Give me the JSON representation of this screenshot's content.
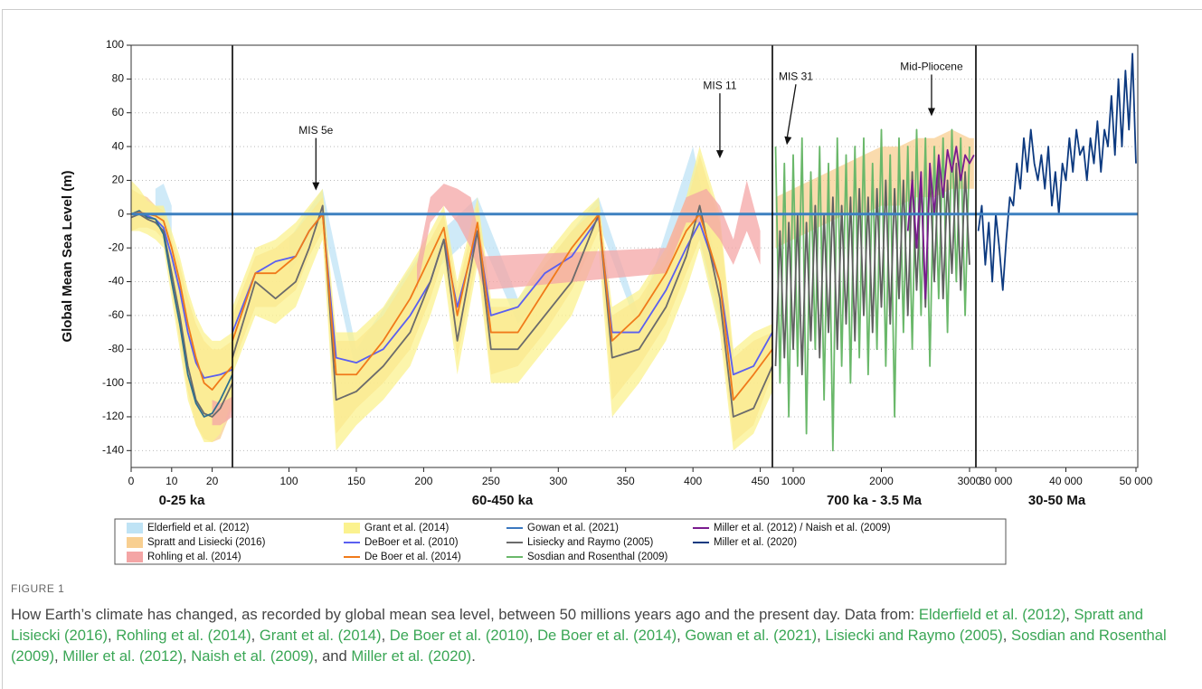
{
  "chart_data": [
    {
      "type": "line",
      "label": "0-25 ka",
      "ylabel": "Global Mean Sea Level (m)",
      "ylim": [
        -150,
        100
      ],
      "yticks": [
        -140,
        -120,
        -100,
        -80,
        -60,
        -40,
        -20,
        0,
        20,
        40,
        60,
        80,
        100
      ],
      "grid": true,
      "xlim": [
        0,
        25
      ],
      "xticks": [
        0,
        10,
        20
      ],
      "reference_line": {
        "value": 0,
        "color": "#3d80c0"
      },
      "x": [
        0,
        2,
        4,
        6,
        8,
        10,
        12,
        14,
        16,
        18,
        20,
        22,
        25
      ],
      "series": [
        {
          "color": "#bfe3f5",
          "x": [
            6,
            8,
            10
          ],
          "lower": [
            -5,
            -10,
            -20
          ],
          "upper": [
            15,
            18,
            5
          ]
        },
        {
          "color": "#f8cf91",
          "lower": [
            -10,
            -8,
            -8,
            -10,
            -15,
            -45,
            -75,
            -105,
            -125,
            -133,
            -135,
            -133,
            -115
          ],
          "upper": [
            15,
            12,
            10,
            5,
            2,
            -15,
            -30,
            -50,
            -65,
            -75,
            -80,
            -80,
            -75
          ]
        },
        {
          "color": "#fbf28f",
          "lower": [
            -10,
            -10,
            -12,
            -15,
            -20,
            -50,
            -80,
            -110,
            -125,
            -135,
            -135,
            -130,
            -110
          ],
          "upper": [
            20,
            15,
            8,
            5,
            5,
            -10,
            -25,
            -45,
            -60,
            -70,
            -75,
            -75,
            -70
          ]
        },
        {
          "color": "#f4a5a5",
          "x": [
            20,
            22,
            25
          ],
          "lower": [
            -125,
            -125,
            -120
          ],
          "upper": [
            -110,
            -112,
            -108
          ]
        },
        {
          "color": "#5a5ff0",
          "values": [
            0,
            0,
            -1,
            -3,
            -8,
            -25,
            -45,
            -70,
            -88,
            -97,
            -96,
            -95,
            -92
          ]
        },
        {
          "color": "#6b6b6b",
          "values": [
            -2,
            0,
            -3,
            -5,
            -10,
            -35,
            -60,
            -90,
            -110,
            -118,
            -120,
            -115,
            -100
          ]
        },
        {
          "color": "#2f6f8f",
          "values": [
            0,
            2,
            -2,
            -3,
            -12,
            -40,
            -65,
            -95,
            -112,
            -120,
            -118,
            -110,
            -95
          ]
        },
        {
          "color": "#f07a1a",
          "values": [
            0,
            1,
            0,
            -1,
            -4,
            -20,
            -40,
            -65,
            -85,
            -100,
            -104,
            -98,
            -90
          ]
        }
      ]
    },
    {
      "type": "line",
      "label": "60-450 ka",
      "ylim": [
        -150,
        100
      ],
      "xlim": [
        58,
        459
      ],
      "xticks": [
        100,
        150,
        200,
        250,
        300,
        350,
        400,
        450
      ],
      "reference_line": {
        "value": 0,
        "color": "#3d80c0"
      },
      "x": [
        58,
        75,
        90,
        105,
        115,
        125,
        135,
        150,
        170,
        190,
        205,
        215,
        225,
        240,
        250,
        270,
        290,
        310,
        330,
        340,
        360,
        380,
        395,
        405,
        420,
        430,
        445,
        459
      ],
      "series": [
        {
          "color": "#bfe3f5",
          "x": [
            100,
            125,
            150,
            200,
            240,
            270,
            330,
            360,
            400,
            430
          ],
          "lower": [
            -35,
            -5,
            -95,
            -40,
            -10,
            -65,
            -5,
            -70,
            0,
            -100
          ],
          "upper": [
            -15,
            15,
            -80,
            -20,
            10,
            -50,
            10,
            -60,
            40,
            -80
          ]
        },
        {
          "color": "#f8cf91",
          "lower": [
            -90,
            -55,
            -55,
            -45,
            -25,
            -10,
            -130,
            -115,
            -100,
            -80,
            -50,
            -25,
            -85,
            -25,
            -95,
            -90,
            -70,
            -45,
            -10,
            -110,
            -90,
            -65,
            -35,
            -15,
            -60,
            -135,
            -125,
            -95
          ],
          "upper": [
            -60,
            -25,
            -20,
            -10,
            0,
            10,
            -75,
            -75,
            -60,
            -35,
            -15,
            0,
            -45,
            5,
            -55,
            -55,
            -30,
            -10,
            5,
            -60,
            -50,
            -25,
            5,
            35,
            -5,
            -85,
            -75,
            -70
          ]
        },
        {
          "color": "#fbf28f",
          "lower": [
            -95,
            -60,
            -65,
            -55,
            -35,
            -15,
            -140,
            -125,
            -110,
            -90,
            -60,
            -35,
            -95,
            -30,
            -100,
            -100,
            -80,
            -60,
            -20,
            -120,
            -100,
            -75,
            -45,
            -20,
            -70,
            -140,
            -130,
            -105
          ],
          "upper": [
            -55,
            -20,
            -15,
            -5,
            5,
            15,
            -70,
            -70,
            -55,
            -30,
            -10,
            5,
            -40,
            10,
            -50,
            -50,
            -25,
            -5,
            10,
            -55,
            -45,
            -20,
            10,
            40,
            0,
            -80,
            -70,
            -65
          ]
        },
        {
          "color": "#f4a5a5",
          "x": [
            195,
            205,
            215,
            225,
            235,
            245,
            380,
            395,
            410,
            420,
            430,
            440,
            450
          ],
          "lower": [
            -45,
            -5,
            5,
            -5,
            -20,
            -45,
            -35,
            -5,
            -5,
            -15,
            -30,
            -10,
            -30
          ],
          "upper": [
            -30,
            10,
            18,
            15,
            10,
            -25,
            -20,
            10,
            15,
            5,
            -15,
            20,
            -10
          ]
        },
        {
          "color": "#5a5ff0",
          "values": [
            -70,
            -35,
            -28,
            -25,
            -10,
            0,
            -85,
            -88,
            -80,
            -60,
            -40,
            -15,
            -55,
            -10,
            -60,
            -55,
            -35,
            -25,
            -2,
            -70,
            -70,
            -45,
            -20,
            -5,
            -40,
            -95,
            -90,
            -70
          ]
        },
        {
          "color": "#6b6b6b",
          "values": [
            -85,
            -40,
            -50,
            -40,
            -20,
            5,
            -110,
            -105,
            -90,
            -70,
            -40,
            -15,
            -75,
            -10,
            -80,
            -80,
            -60,
            -40,
            0,
            -85,
            -80,
            -55,
            -25,
            5,
            -50,
            -120,
            -115,
            -90
          ]
        },
        {
          "color": "#f07a1a",
          "values": [
            -75,
            -35,
            -35,
            -25,
            -10,
            0,
            -95,
            -95,
            -75,
            -50,
            -25,
            -8,
            -60,
            -5,
            -70,
            -70,
            -45,
            -20,
            0,
            -75,
            -60,
            -35,
            -10,
            0,
            -40,
            -110,
            -95,
            -80
          ]
        }
      ],
      "annotations": [
        {
          "text": "MIS 5e",
          "x": 120,
          "y": 14
        },
        {
          "text": "MIS 11",
          "x": 420,
          "y": 33
        }
      ]
    },
    {
      "type": "line",
      "label": "700 ka - 3.5 Ma",
      "ylim": [
        -150,
        100
      ],
      "xlim": [
        764,
        3072
      ],
      "xticks": [
        1000,
        2000,
        3000
      ],
      "reference_line": {
        "value": 0,
        "color": "#3d80c0"
      },
      "x": [
        800,
        850,
        900,
        950,
        1000,
        1050,
        1100,
        1150,
        1200,
        1250,
        1300,
        1350,
        1400,
        1450,
        1500,
        1550,
        1600,
        1650,
        1700,
        1750,
        1800,
        1850,
        1900,
        1950,
        2000,
        2050,
        2100,
        2150,
        2200,
        2250,
        2300,
        2350,
        2400,
        2450,
        2500,
        2550,
        2600,
        2650,
        2700,
        2750,
        2800,
        2850,
        2900,
        2950,
        3000
      ],
      "series": [
        {
          "color": "#f8cf91",
          "x": [
            800,
            1000,
            1200,
            1400,
            1600,
            1800,
            2000,
            2200,
            2400,
            2600,
            2800,
            3000,
            3050
          ],
          "lower": [
            -20,
            -15,
            -10,
            -5,
            0,
            0,
            5,
            5,
            10,
            10,
            15,
            15,
            15
          ],
          "upper": [
            10,
            15,
            20,
            25,
            30,
            35,
            40,
            40,
            45,
            45,
            50,
            45,
            45
          ]
        },
        {
          "color": "#6ab86a",
          "values": [
            40,
            -100,
            30,
            -120,
            35,
            -90,
            45,
            -130,
            25,
            -80,
            40,
            -110,
            30,
            -140,
            45,
            -90,
            35,
            -100,
            40,
            -85,
            45,
            -95,
            30,
            -80,
            50,
            -90,
            35,
            -120,
            45,
            -70,
            40,
            -80,
            50,
            -60,
            45,
            -90,
            40,
            -50,
            45,
            -70,
            50,
            -40,
            45,
            -60,
            40
          ]
        },
        {
          "color": "#5f5f5f",
          "values": [
            -90,
            -10,
            -85,
            -5,
            -80,
            0,
            -95,
            -5,
            -75,
            5,
            -85,
            0,
            -70,
            10,
            -80,
            5,
            -65,
            10,
            -75,
            15,
            -60,
            10,
            -70,
            15,
            -55,
            20,
            -65,
            15,
            -50,
            20,
            -60,
            25,
            -45,
            20,
            -55,
            25,
            -40,
            30,
            -50,
            20,
            -35,
            30,
            -45,
            25,
            -30
          ]
        },
        {
          "color": "#7a1b8f",
          "x": [
            2300,
            2350,
            2400,
            2450,
            2500,
            2550,
            2600,
            2650,
            2700,
            2750,
            2800,
            2850,
            2900,
            2950,
            3000,
            3050
          ],
          "values": [
            -10,
            20,
            -20,
            25,
            -50,
            30,
            0,
            35,
            10,
            38,
            25,
            40,
            20,
            35,
            30,
            35
          ]
        }
      ],
      "annotations": [
        {
          "text": "MIS 31",
          "x": 928,
          "y": 41
        },
        {
          "text": "Mid-Pliocene",
          "x": 2569,
          "y": 58
        }
      ]
    },
    {
      "type": "line",
      "label": "30-50 Ma",
      "ylim": [
        -150,
        100
      ],
      "xlim": [
        27160,
        50260
      ],
      "xticks": [
        {
          "value": 30000,
          "label": "30 000"
        },
        {
          "value": 40000,
          "label": "40 000"
        },
        {
          "value": 50000,
          "label": "50 000"
        }
      ],
      "reference_line": {
        "value": 0,
        "color": "#3d80c0"
      },
      "x": [
        27500,
        28000,
        28500,
        29000,
        29500,
        30000,
        30500,
        31000,
        31500,
        32000,
        32500,
        33000,
        33500,
        34000,
        34500,
        35000,
        35500,
        36000,
        36500,
        37000,
        37500,
        38000,
        38500,
        39000,
        39500,
        40000,
        40500,
        41000,
        41500,
        42000,
        42500,
        43000,
        43500,
        44000,
        44500,
        45000,
        45500,
        46000,
        46500,
        47000,
        47500,
        48000,
        48500,
        49000,
        49500,
        50000
      ],
      "series": [
        {
          "color": "#0d3a80",
          "values": [
            -10,
            5,
            -30,
            -5,
            -40,
            0,
            -20,
            -45,
            -15,
            10,
            5,
            30,
            15,
            45,
            25,
            50,
            30,
            20,
            35,
            15,
            40,
            5,
            25,
            0,
            30,
            20,
            45,
            25,
            50,
            35,
            40,
            20,
            45,
            30,
            55,
            25,
            50,
            40,
            70,
            35,
            80,
            40,
            85,
            50,
            95,
            30
          ]
        }
      ]
    }
  ],
  "legend": [
    {
      "name": "Elderfield et al. (2012)",
      "color": "#bfe3f5",
      "style": "band"
    },
    {
      "name": "Spratt and Lisiecki (2016)",
      "color": "#f8cf91",
      "style": "band"
    },
    {
      "name": "Rohling et al. (2014)",
      "color": "#f4a5a5",
      "style": "band"
    },
    {
      "name": "Grant et al. (2014)",
      "color": "#fbf28f",
      "style": "band"
    },
    {
      "name": "DeBoer et al. (2010)",
      "color": "#5a5ff0",
      "style": "line"
    },
    {
      "name": "De Boer et al. (2014)",
      "color": "#f07a1a",
      "style": "line"
    },
    {
      "name": "Gowan et al. (2021)",
      "color": "#3b78c0",
      "style": "line"
    },
    {
      "name": "Lisiecky and Raymo (2005)",
      "color": "#6b6b6b",
      "style": "line"
    },
    {
      "name": "Sosdian and Rosenthal (2009)",
      "color": "#6ab86a",
      "style": "line"
    },
    {
      "name": "Miller et al. (2012) / Naish et al. (2009)",
      "color": "#7a1b8f",
      "style": "line"
    },
    {
      "name": "Miller et al. (2020)",
      "color": "#0d3a80",
      "style": "line"
    }
  ],
  "figure": {
    "label": "FIGURE 1",
    "caption": [
      {
        "text": "How Earth’s climate has changed, as recorded by global mean sea level, between 50 millions years ago and the present day. Data from: ",
        "cite": false
      },
      {
        "text": "Elderfield et al. (2012)",
        "cite": true
      },
      {
        "text": ", ",
        "cite": false
      },
      {
        "text": "Spratt and Lisiecki (2016)",
        "cite": true
      },
      {
        "text": ", ",
        "cite": false
      },
      {
        "text": "Rohling et al. (2014)",
        "cite": true
      },
      {
        "text": ", ",
        "cite": false
      },
      {
        "text": "Grant et al. (2014)",
        "cite": true
      },
      {
        "text": ", ",
        "cite": false
      },
      {
        "text": "De Boer et al. (2010)",
        "cite": true
      },
      {
        "text": ", ",
        "cite": false
      },
      {
        "text": "De Boer et al. (2014)",
        "cite": true
      },
      {
        "text": ", ",
        "cite": false
      },
      {
        "text": "Gowan et al. (2021)",
        "cite": true
      },
      {
        "text": ", ",
        "cite": false
      },
      {
        "text": "Lisiecki and Raymo (2005)",
        "cite": true
      },
      {
        "text": ", ",
        "cite": false
      },
      {
        "text": "Sosdian and Rosenthal (2009)",
        "cite": true
      },
      {
        "text": ", ",
        "cite": false
      },
      {
        "text": "Miller et al. (2012)",
        "cite": true
      },
      {
        "text": ", ",
        "cite": false
      },
      {
        "text": "Naish et al. (2009)",
        "cite": true
      },
      {
        "text": ", and ",
        "cite": false
      },
      {
        "text": "Miller et al. (2020)",
        "cite": true
      },
      {
        "text": ".",
        "cite": false
      }
    ]
  }
}
